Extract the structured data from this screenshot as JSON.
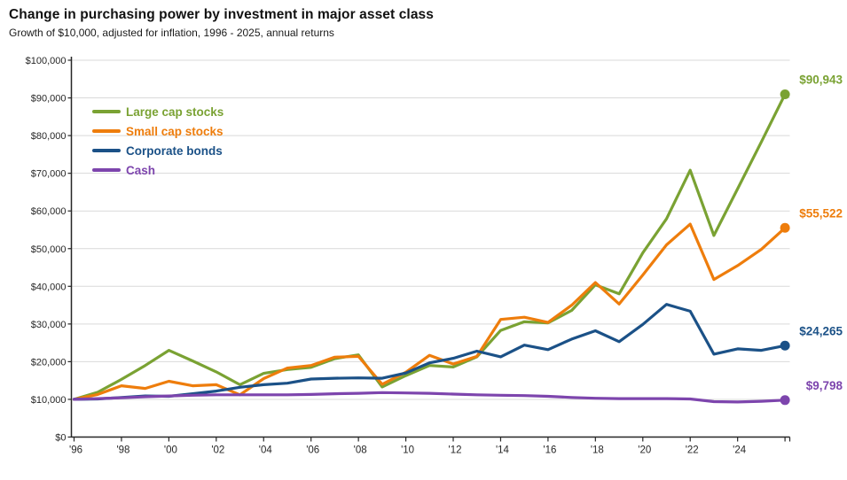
{
  "header": {
    "title": "Change in purchasing power by investment in major asset class",
    "subtitle": "Growth of $10,000, adjusted for inflation, 1996 - 2025, annual returns"
  },
  "chart_data": {
    "type": "line",
    "n_points": 31,
    "x_start_label": "'96",
    "x_tick_labels": [
      "'96",
      "'98",
      "'00",
      "'02",
      "'04",
      "'06",
      "'08",
      "'10",
      "'12",
      "'14",
      "'16",
      "'18",
      "'20",
      "'22",
      "'24"
    ],
    "x_tick_point_step": 2,
    "y_ticks": [
      0,
      10000,
      20000,
      30000,
      40000,
      50000,
      60000,
      70000,
      80000,
      90000,
      100000
    ],
    "y_tick_labels": [
      "$0",
      "$10,000",
      "$20,000",
      "$30,000",
      "$40,000",
      "$50,000",
      "$60,000",
      "$70,000",
      "$80,000",
      "$90,000",
      "$100,000"
    ],
    "ylim": [
      0,
      100000
    ],
    "grid": "horizontal",
    "legend_position": "upper-left-inside",
    "series": [
      {
        "name": "Large cap stocks",
        "color": "#7aa233",
        "end_label": "$90,943",
        "end_value": 90943,
        "values": [
          10000,
          11900,
          15300,
          19000,
          23000,
          20200,
          17300,
          13900,
          16900,
          17900,
          18500,
          20800,
          21800,
          13300,
          16300,
          19000,
          18600,
          21300,
          28300,
          30600,
          30300,
          33600,
          40400,
          38000,
          48900,
          57900,
          70800,
          53500,
          65900,
          78300,
          90943
        ]
      },
      {
        "name": "Small cap stocks",
        "color": "#ee7d0c",
        "end_label": "$55,522",
        "end_value": 55522,
        "values": [
          10000,
          11300,
          13600,
          12900,
          14800,
          13600,
          13900,
          11200,
          15500,
          18300,
          19000,
          21200,
          21400,
          14000,
          17200,
          21700,
          19400,
          21400,
          31200,
          31800,
          30400,
          35000,
          41000,
          35300,
          43000,
          51000,
          56500,
          41800,
          45500,
          49800,
          55522
        ]
      },
      {
        "name": "Corporate bonds",
        "color": "#1b5187",
        "end_label": "$24,265",
        "end_value": 24265,
        "values": [
          10000,
          10100,
          10500,
          10900,
          10800,
          11500,
          12200,
          13200,
          13900,
          14300,
          15400,
          15600,
          15700,
          15600,
          17000,
          19700,
          20900,
          22800,
          21300,
          24400,
          23200,
          26000,
          28200,
          25300,
          29900,
          35200,
          33400,
          22000,
          23400,
          23000,
          24265
        ]
      },
      {
        "name": "Cash",
        "color": "#7d45ad",
        "end_label": "$9,798",
        "end_value": 9798,
        "values": [
          10000,
          10200,
          10400,
          10700,
          10900,
          11100,
          11200,
          11200,
          11200,
          11200,
          11300,
          11500,
          11600,
          11800,
          11700,
          11600,
          11400,
          11200,
          11100,
          11000,
          10800,
          10500,
          10300,
          10200,
          10200,
          10200,
          10100,
          9400,
          9300,
          9500,
          9798
        ]
      }
    ],
    "colors": {
      "grid_line": "#d9d9d9",
      "axis_line": "#262626",
      "tick_label": "#262626",
      "background": "#ffffff"
    }
  }
}
